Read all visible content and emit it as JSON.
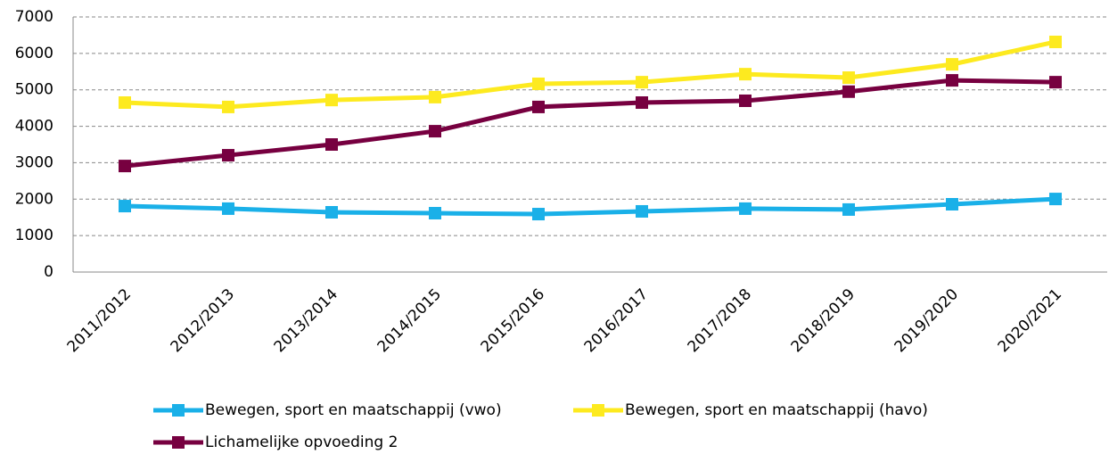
{
  "chart_data": {
    "type": "line",
    "categories": [
      "2011/2012",
      "2012/2013",
      "2013/2014",
      "2014/2015",
      "2015/2016",
      "2016/2017",
      "2017/2018",
      "2018/2019",
      "2019/2020",
      "2020/2021"
    ],
    "series": [
      {
        "name": "Bewegen, sport en maatschappij (vwo)",
        "color": "#1ab0e8",
        "values": [
          1810,
          1740,
          1640,
          1615,
          1590,
          1665,
          1740,
          1715,
          1860,
          2005
        ]
      },
      {
        "name": "Bewegen, sport en maatschappij (havo)",
        "color": "#fdea1f",
        "values": [
          4650,
          4530,
          4720,
          4800,
          5165,
          5210,
          5430,
          5335,
          5700,
          6315
        ]
      },
      {
        "name": "Lichamelijke opvoeding 2",
        "color": "#770040",
        "values": [
          2910,
          3205,
          3500,
          3865,
          4530,
          4650,
          4700,
          4950,
          5260,
          5210
        ]
      }
    ],
    "ylim": [
      0,
      7000
    ],
    "yticks": [
      0,
      1000,
      2000,
      3000,
      4000,
      5000,
      6000,
      7000
    ],
    "grid": true,
    "legend": "bottom"
  }
}
